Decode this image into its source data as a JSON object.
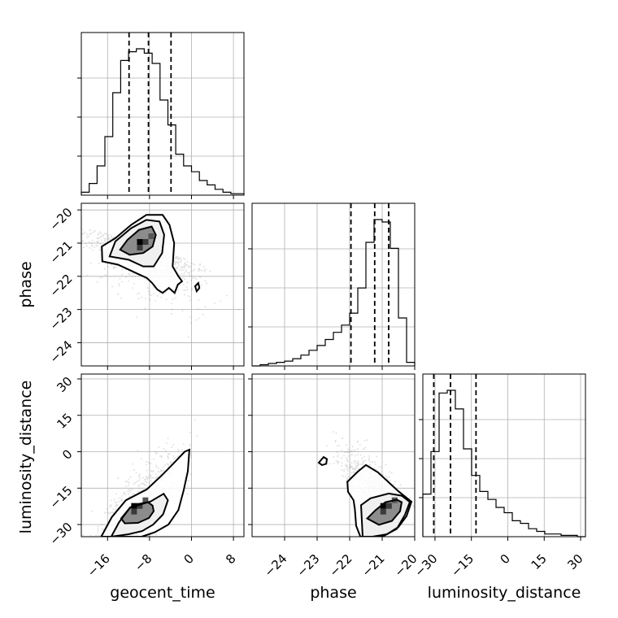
{
  "chart_data": {
    "type": "corner",
    "parameters": [
      "geocent_time",
      "phase",
      "luminosity_distance"
    ],
    "grid": true,
    "marginals": [
      {
        "name": "geocent_time",
        "range": [
          -21,
          10
        ],
        "ticks": [
          -16,
          -8,
          0,
          8
        ],
        "tick_labels": [
          "−16",
          "−8",
          "0",
          "8"
        ],
        "quantiles": [
          -11.9,
          -8.2,
          -3.9
        ],
        "bins": [
          -21,
          -19.5,
          -18,
          -16.5,
          -15,
          -13.5,
          -12,
          -10.5,
          -9,
          -7.5,
          -6,
          -4.5,
          -3,
          -1.5,
          0,
          1.5,
          3,
          4.5,
          6,
          7.5,
          10
        ],
        "counts": [
          2,
          8,
          20,
          40,
          70,
          92,
          98,
          100,
          97,
          90,
          65,
          48,
          28,
          20,
          16,
          10,
          7,
          4,
          2,
          1
        ]
      },
      {
        "name": "phase",
        "range": [
          -25,
          -20
        ],
        "ticks": [
          -24,
          -23,
          -22,
          -21,
          -20
        ],
        "tick_labels": [
          "−24",
          "−23",
          "−22",
          "−21",
          "−20"
        ],
        "quantiles": [
          -21.96,
          -21.23,
          -20.8
        ],
        "bins": [
          -25,
          -24.75,
          -24.5,
          -24.25,
          -24,
          -23.75,
          -23.5,
          -23.25,
          -23,
          -22.75,
          -22.5,
          -22.25,
          -22,
          -21.75,
          -21.5,
          -21.25,
          -21,
          -20.75,
          -20.5,
          -20.25,
          -20
        ],
        "counts": [
          0,
          1,
          2,
          3,
          4,
          6,
          9,
          13,
          17,
          22,
          28,
          34,
          44,
          65,
          103,
          122,
          120,
          98,
          40,
          3
        ]
      },
      {
        "name": "luminosity_distance",
        "range": [
          -35,
          32
        ],
        "ticks": [
          -30,
          -15,
          0,
          15,
          30
        ],
        "tick_labels": [
          "−30",
          "−15",
          "0",
          "15",
          "30"
        ],
        "quantiles": [
          -30.5,
          -23.6,
          -13.1
        ],
        "bins": [
          -35,
          -31.65,
          -28.3,
          -24.95,
          -21.6,
          -18.25,
          -14.9,
          -11.55,
          -8.2,
          -4.85,
          -1.5,
          1.85,
          5.2,
          8.55,
          11.9,
          15.25,
          18.6,
          21.95,
          25.3,
          28.65,
          32
        ],
        "counts": [
          16,
          32,
          54,
          55,
          48,
          33,
          23,
          17,
          14,
          11,
          9,
          6,
          5,
          3,
          2,
          1,
          1,
          0.5,
          0.5,
          0
        ]
      }
    ],
    "pairs": [
      {
        "x": "geocent_time",
        "y": "phase",
        "xlim": [
          -21,
          10
        ],
        "ylim": [
          -24.7,
          -19.8
        ],
        "y_ticks": [
          -24,
          -23,
          -22,
          -21,
          -20
        ],
        "y_tick_labels": [
          "−24",
          "−23",
          "−22",
          "−21",
          "−20"
        ],
        "peak": [
          -9.3,
          -21.05
        ],
        "contour_outer": [
          [
            -17,
            -21.55
          ],
          [
            -17.1,
            -21.1
          ],
          [
            -14.5,
            -20.85
          ],
          [
            -11.5,
            -20.45
          ],
          [
            -8.6,
            -20.15
          ],
          [
            -5.5,
            -20.15
          ],
          [
            -4.2,
            -20.45
          ],
          [
            -3.3,
            -21.0
          ],
          [
            -3.6,
            -21.7
          ],
          [
            -2.5,
            -22.0
          ],
          [
            -1.8,
            -22.15
          ],
          [
            -2.6,
            -22.25
          ],
          [
            -3.2,
            -22.5
          ],
          [
            -4.3,
            -22.35
          ],
          [
            -5.5,
            -22.5
          ],
          [
            -6.5,
            -22.4
          ],
          [
            -7.5,
            -22.2
          ],
          [
            -8.5,
            -22.05
          ],
          [
            -10.6,
            -21.9
          ],
          [
            -14,
            -21.65
          ],
          [
            -17,
            -21.55
          ]
        ],
        "contour_middle": [
          [
            -15.6,
            -21.4
          ],
          [
            -14.5,
            -20.95
          ],
          [
            -11.5,
            -20.55
          ],
          [
            -8.6,
            -20.3
          ],
          [
            -6.1,
            -20.35
          ],
          [
            -5.2,
            -20.75
          ],
          [
            -5.6,
            -21.3
          ],
          [
            -7.2,
            -21.7
          ],
          [
            -9.2,
            -21.7
          ],
          [
            -12,
            -21.5
          ],
          [
            -15.6,
            -21.4
          ]
        ],
        "contour_inner": [
          [
            -13.6,
            -21.2
          ],
          [
            -12.2,
            -20.9
          ],
          [
            -10,
            -20.6
          ],
          [
            -7.6,
            -20.5
          ],
          [
            -6.8,
            -20.75
          ],
          [
            -7.4,
            -21.1
          ],
          [
            -9.2,
            -21.3
          ],
          [
            -11.8,
            -21.35
          ],
          [
            -13.6,
            -21.2
          ]
        ],
        "contour_island": [
          [
            0.7,
            -22.3
          ],
          [
            1.3,
            -22.2
          ],
          [
            1.5,
            -22.35
          ],
          [
            1.0,
            -22.45
          ],
          [
            0.7,
            -22.3
          ]
        ]
      },
      {
        "x": "geocent_time",
        "y": "luminosity_distance",
        "xlim": [
          -21,
          10
        ],
        "ylim": [
          -35,
          32
        ],
        "y_ticks": [
          -30,
          -15,
          0,
          15,
          30
        ],
        "y_tick_labels": [
          "−30",
          "−15",
          "0",
          "15",
          "30"
        ],
        "peak": [
          -10.4,
          -23.5
        ],
        "contour_outer": [
          [
            -17.2,
            -35
          ],
          [
            -15.2,
            -27
          ],
          [
            -12.5,
            -20
          ],
          [
            -8.5,
            -15.5
          ],
          [
            -5.8,
            -10
          ],
          [
            -3.5,
            -5
          ],
          [
            -1.3,
            0
          ],
          [
            -0.4,
            0.8
          ],
          [
            -0.7,
            -8
          ],
          [
            -1.5,
            -16
          ],
          [
            -2.5,
            -24
          ],
          [
            -4.4,
            -30
          ],
          [
            -7,
            -33.2
          ],
          [
            -9.5,
            -35
          ]
        ],
        "contour_middle": [
          [
            -15.3,
            -35
          ],
          [
            -13.8,
            -29
          ],
          [
            -11.7,
            -23
          ],
          [
            -7.8,
            -20.5
          ],
          [
            -5.3,
            -17.3
          ],
          [
            -4.5,
            -20
          ],
          [
            -5.4,
            -25.8
          ],
          [
            -7.3,
            -30
          ],
          [
            -9.4,
            -32.7
          ],
          [
            -12,
            -34
          ],
          [
            -15.3,
            -35
          ]
        ],
        "contour_inner": [
          [
            -13.4,
            -27.5
          ],
          [
            -11.7,
            -23
          ],
          [
            -10.7,
            -21.8
          ],
          [
            -8.3,
            -20.8
          ],
          [
            -7.4,
            -22.2
          ],
          [
            -7.2,
            -24.5
          ],
          [
            -8.1,
            -27.3
          ],
          [
            -10.2,
            -29.3
          ],
          [
            -12.7,
            -29.5
          ],
          [
            -13.4,
            -27.5
          ]
        ]
      },
      {
        "x": "phase",
        "y": "luminosity_distance",
        "xlim": [
          -25,
          -20
        ],
        "ylim": [
          -35,
          32
        ],
        "peak": [
          -20.88,
          -23.5
        ],
        "contour_outer": [
          [
            -22.07,
            -12.4
          ],
          [
            -21.75,
            -8.2
          ],
          [
            -21.5,
            -5.5
          ],
          [
            -21.13,
            -8.5
          ],
          [
            -20.5,
            -16.3
          ],
          [
            -20.1,
            -20.6
          ],
          [
            -20.25,
            -26.5
          ],
          [
            -20.5,
            -31
          ],
          [
            -20.85,
            -34
          ],
          [
            -21.3,
            -35
          ],
          [
            -21.67,
            -35
          ],
          [
            -21.8,
            -30.5
          ],
          [
            -21.84,
            -23.6
          ],
          [
            -21.88,
            -20
          ],
          [
            -22.05,
            -16.5
          ],
          [
            -22.07,
            -12.4
          ]
        ],
        "contour_middle": [
          [
            -21.6,
            -35
          ],
          [
            -21.65,
            -22
          ],
          [
            -21.36,
            -19.2
          ],
          [
            -20.8,
            -17.2
          ],
          [
            -20.4,
            -18.1
          ],
          [
            -20.15,
            -20.7
          ],
          [
            -20.3,
            -26
          ],
          [
            -20.55,
            -31.8
          ],
          [
            -21,
            -35
          ],
          [
            -21.6,
            -35
          ]
        ],
        "contour_inner": [
          [
            -21.46,
            -27.5
          ],
          [
            -21.2,
            -24
          ],
          [
            -20.9,
            -20.8
          ],
          [
            -20.55,
            -19.8
          ],
          [
            -20.4,
            -20.8
          ],
          [
            -20.45,
            -24.5
          ],
          [
            -20.7,
            -28.5
          ],
          [
            -21.1,
            -30.1
          ],
          [
            -21.46,
            -27.5
          ]
        ],
        "contour_island": [
          [
            -22.95,
            -4.5
          ],
          [
            -22.8,
            -2.2
          ],
          [
            -22.7,
            -3.0
          ],
          [
            -22.72,
            -5.0
          ],
          [
            -22.85,
            -5.5
          ],
          [
            -22.95,
            -4.5
          ]
        ]
      }
    ]
  }
}
